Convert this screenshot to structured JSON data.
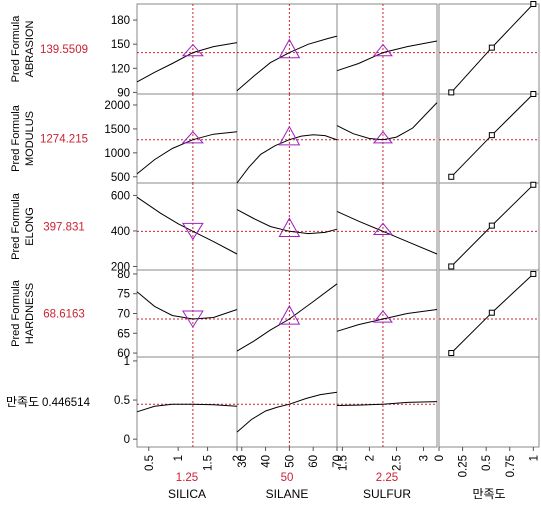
{
  "chart_data": {
    "type": "line",
    "title": "",
    "factors": [
      {
        "name": "SILICA",
        "current": "1.25",
        "range": [
          0.3,
          2.0
        ],
        "ticks": [
          0.5,
          1,
          1.5,
          2
        ],
        "tick_labels": [
          "0.5",
          "1",
          "1.5",
          "2"
        ]
      },
      {
        "name": "SILANE",
        "current": "50",
        "range": [
          28,
          70
        ],
        "ticks": [
          30,
          40,
          50,
          60,
          70
        ],
        "tick_labels": [
          "30",
          "40",
          "50",
          "60",
          "70"
        ]
      },
      {
        "name": "SULFUR",
        "current": "2.25",
        "range": [
          1.4,
          3.25
        ],
        "ticks": [
          1.5,
          2,
          2.5,
          3
        ],
        "tick_labels": [
          "1.5",
          "2",
          "2.5",
          "3"
        ]
      },
      {
        "name": "만족도",
        "current": "",
        "range": [
          0,
          1.06
        ],
        "ticks": [
          0,
          0.25,
          0.5,
          0.75,
          1
        ],
        "tick_labels": [
          "0",
          "0.25",
          "0.5",
          "0.75",
          "1"
        ]
      }
    ],
    "responses": [
      {
        "label_line1": "Pred Formula",
        "label_line2": "ABRASION",
        "current_value": "139.5509",
        "value": 139.5509,
        "ylim": [
          88,
          200
        ],
        "ticks": [
          90,
          120,
          150,
          180
        ],
        "tick_labels": [
          "90",
          "120",
          "150",
          "180"
        ],
        "curves": [
          [
            [
              0.3,
              103
            ],
            [
              0.6,
              115
            ],
            [
              0.9,
              126
            ],
            [
              1.25,
              139.55
            ],
            [
              1.6,
              147
            ],
            [
              2.0,
              152
            ]
          ],
          [
            [
              28,
              92
            ],
            [
              35,
              110
            ],
            [
              42,
              127
            ],
            [
              50,
              139.55
            ],
            [
              58,
              150
            ],
            [
              66,
              157
            ],
            [
              70,
              160
            ]
          ],
          [
            [
              1.4,
              117
            ],
            [
              1.8,
              126
            ],
            [
              2.25,
              139.55
            ],
            [
              2.7,
              147
            ],
            [
              3.25,
              154
            ]
          ]
        ],
        "desirability": [
          [
            0.13,
            90
          ],
          [
            0.56,
            145.7
          ],
          [
            1.0,
            200
          ]
        ]
      },
      {
        "label_line1": "Pred Formula",
        "label_line2": "MODULUS",
        "current_value": "1274.215",
        "value": 1274.215,
        "ylim": [
          370,
          2230
        ],
        "ticks": [
          500,
          1000,
          1500,
          2000
        ],
        "tick_labels": [
          "500",
          "1000",
          "1500",
          "2000"
        ],
        "curves": [
          [
            [
              0.3,
              560
            ],
            [
              0.6,
              860
            ],
            [
              0.9,
              1090
            ],
            [
              1.25,
              1274.2
            ],
            [
              1.6,
              1390
            ],
            [
              2.0,
              1440
            ]
          ],
          [
            [
              28,
              370
            ],
            [
              33,
              700
            ],
            [
              38,
              970
            ],
            [
              44,
              1150
            ],
            [
              50,
              1274.2
            ],
            [
              55,
              1350
            ],
            [
              60,
              1380
            ],
            [
              65,
              1360
            ],
            [
              70,
              1270
            ]
          ],
          [
            [
              1.4,
              1570
            ],
            [
              1.7,
              1400
            ],
            [
              2.0,
              1300
            ],
            [
              2.25,
              1274.2
            ],
            [
              2.5,
              1330
            ],
            [
              2.8,
              1520
            ],
            [
              3.25,
              2050
            ]
          ]
        ],
        "desirability": [
          [
            0.13,
            500
          ],
          [
            0.56,
            1370
          ],
          [
            1.0,
            2230
          ]
        ]
      },
      {
        "label_line1": "Pred Formula",
        "label_line2": "ELONG",
        "current_value": "397.831",
        "value": 397.831,
        "ylim": [
          180,
          670
        ],
        "ticks": [
          200,
          400,
          600
        ],
        "tick_labels": [
          "200",
          "400",
          "600"
        ],
        "curves": [
          [
            [
              0.3,
              590
            ],
            [
              0.7,
              500
            ],
            [
              1.0,
              440
            ],
            [
              1.25,
              397.8
            ],
            [
              1.6,
              340
            ],
            [
              2.0,
              270
            ]
          ],
          [
            [
              28,
              520
            ],
            [
              35,
              470
            ],
            [
              42,
              425
            ],
            [
              50,
              397.8
            ],
            [
              58,
              385
            ],
            [
              65,
              392
            ],
            [
              70,
              410
            ]
          ],
          [
            [
              1.4,
              510
            ],
            [
              1.8,
              455
            ],
            [
              2.25,
              397.8
            ],
            [
              2.7,
              340
            ],
            [
              3.25,
              270
            ]
          ]
        ],
        "desirability": [
          [
            0.13,
            200
          ],
          [
            0.56,
            430
          ],
          [
            1.0,
            660
          ]
        ]
      },
      {
        "label_line1": "Pred Formula",
        "label_line2": "HARDNESS",
        "current_value": "68.6163",
        "value": 68.6163,
        "ylim": [
          59,
          81
        ],
        "ticks": [
          60,
          65,
          70,
          75,
          80
        ],
        "tick_labels": [
          "60",
          "65",
          "70",
          "75",
          "80"
        ],
        "curves": [
          [
            [
              0.3,
              75.5
            ],
            [
              0.6,
              71.8
            ],
            [
              0.9,
              69.5
            ],
            [
              1.25,
              68.62
            ],
            [
              1.6,
              69
            ],
            [
              2.0,
              71
            ]
          ],
          [
            [
              28,
              60.5
            ],
            [
              35,
              63
            ],
            [
              42,
              65.8
            ],
            [
              50,
              68.62
            ],
            [
              60,
              73
            ],
            [
              70,
              77.5
            ]
          ],
          [
            [
              1.4,
              65.5
            ],
            [
              1.8,
              67.2
            ],
            [
              2.25,
              68.62
            ],
            [
              2.7,
              70
            ],
            [
              3.25,
              71
            ]
          ]
        ],
        "desirability": [
          [
            0.13,
            60
          ],
          [
            0.56,
            70.2
          ],
          [
            1.0,
            80
          ]
        ]
      },
      {
        "label_line1": "",
        "label_line2": "",
        "label": "만족도",
        "current_value": "0.446514",
        "value": 0.446514,
        "ylim": [
          -0.1,
          1.05
        ],
        "ticks": [
          0,
          0.5,
          1
        ],
        "tick_labels": [
          "0",
          "0.5",
          "1"
        ],
        "curves": [
          [
            [
              0.3,
              0.35
            ],
            [
              0.6,
              0.42
            ],
            [
              0.9,
              0.445
            ],
            [
              1.25,
              0.4465
            ],
            [
              1.6,
              0.44
            ],
            [
              2.0,
              0.42
            ]
          ],
          [
            [
              28,
              0.09
            ],
            [
              34,
              0.25
            ],
            [
              40,
              0.36
            ],
            [
              45,
              0.41
            ],
            [
              50,
              0.4465
            ],
            [
              57,
              0.52
            ],
            [
              63,
              0.57
            ],
            [
              70,
              0.6
            ]
          ],
          [
            [
              1.4,
              0.43
            ],
            [
              1.8,
              0.435
            ],
            [
              2.25,
              0.4465
            ],
            [
              2.7,
              0.47
            ],
            [
              3.25,
              0.48
            ]
          ]
        ],
        "desirability": []
      }
    ]
  }
}
